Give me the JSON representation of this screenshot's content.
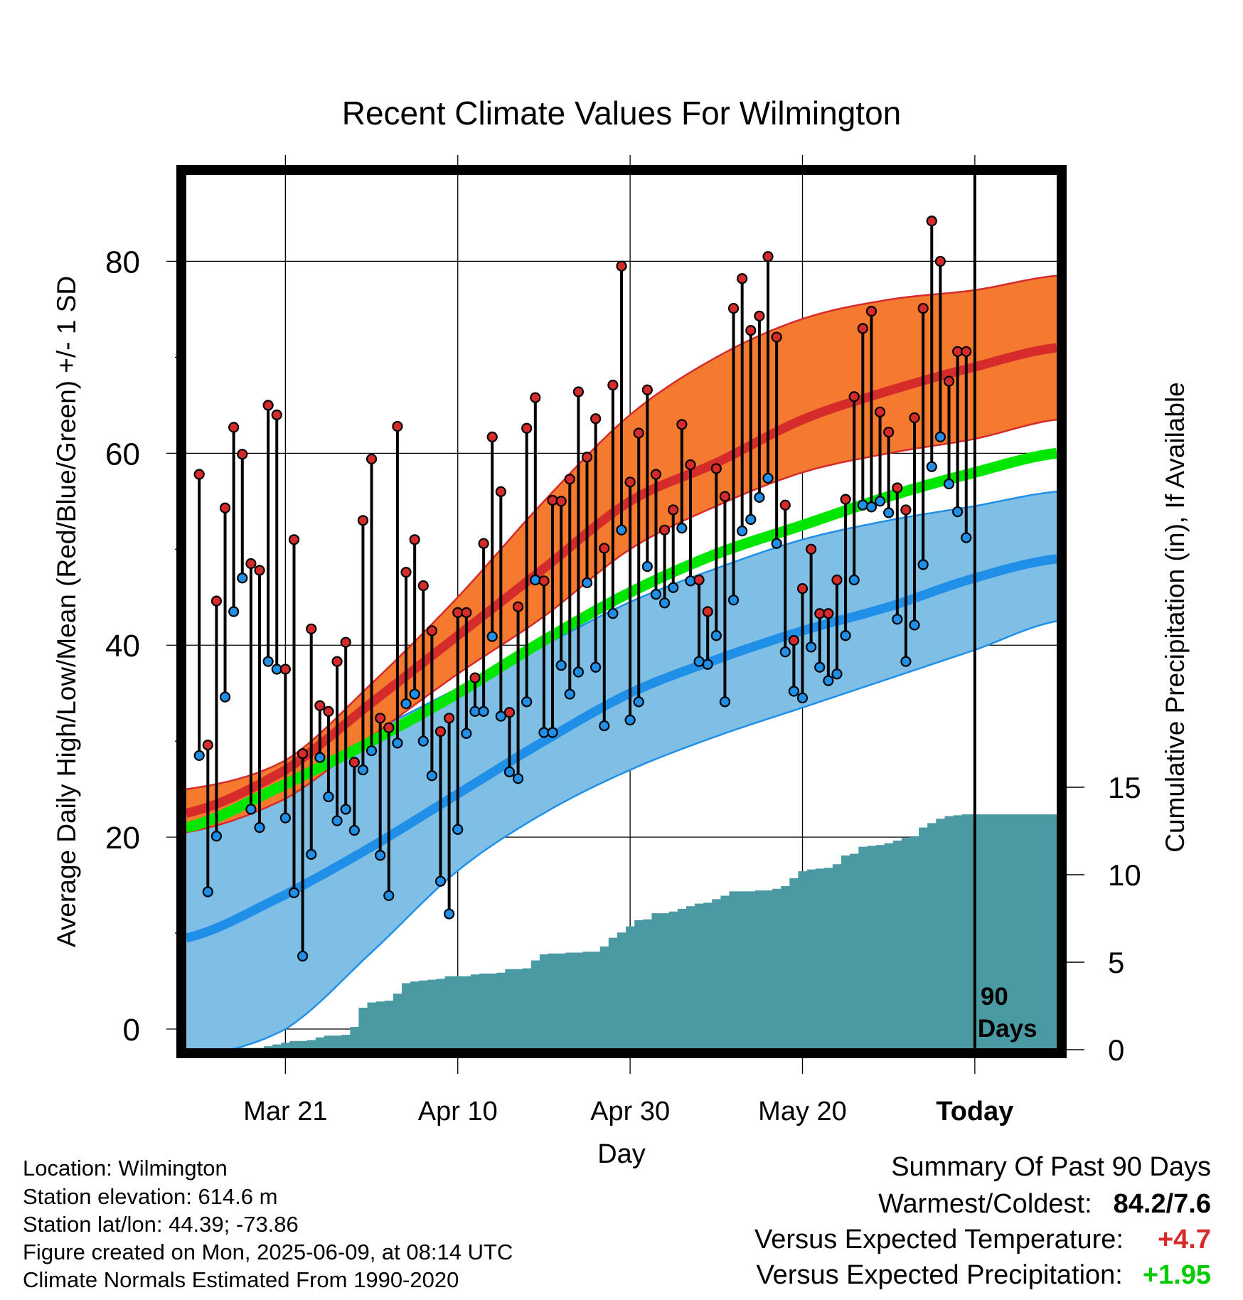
{
  "chart_data": {
    "type": "line",
    "title": "Recent Climate Values For Wilmington",
    "ylabel": "Average Daily High/Low/Mean (Red/Blue/Green) +/- 1 SD",
    "y2label": "Cumulative Precipitation (in), If Available",
    "xlabel": "Day",
    "ylim": [
      -2,
      89
    ],
    "y_ticks": [
      0,
      20,
      40,
      60,
      80
    ],
    "y2lim": [
      0,
      15
    ],
    "y2_ticks": [
      0,
      5,
      10,
      15
    ],
    "x_ticks": [
      {
        "day": 10,
        "label": "Mar 21"
      },
      {
        "day": 30,
        "label": "Apr 10"
      },
      {
        "day": 50,
        "label": "Apr 30"
      },
      {
        "day": 70,
        "label": "May 20"
      },
      {
        "day": 90,
        "label": "Today"
      }
    ],
    "xlim": [
      -1.5,
      99.5
    ],
    "today_marker": {
      "day": 90,
      "label_line1": "90",
      "label_line2": "Days"
    },
    "colors": {
      "high_band": "#f47a30",
      "high_mean": "#d62b2b",
      "low_band": "#7fbfe6",
      "low_mean": "#1f8fe8",
      "normal_mean": "#00e600",
      "precip": "#4a9aa3",
      "high_point": "#d62b2b",
      "low_point": "#1f8fe8"
    },
    "normals": {
      "days": [
        -1.5,
        10,
        20,
        30,
        40,
        50,
        60,
        70,
        80,
        90,
        99.5
      ],
      "high_mean": [
        22.5,
        27,
        34,
        41,
        48,
        55,
        59,
        63.5,
        66.5,
        69,
        71
      ],
      "high_sd_upper": [
        25,
        28,
        36,
        45,
        55,
        64,
        70,
        74,
        76,
        77,
        78.5
      ],
      "high_sd_lower": [
        20.5,
        24,
        30.5,
        37,
        43,
        50,
        54.5,
        58,
        60,
        61.5,
        63.5
      ],
      "low_mean": [
        9.5,
        14,
        19,
        24.5,
        30,
        35,
        38.5,
        41.5,
        44,
        47,
        49
      ],
      "low_sd_upper": [
        23.5,
        27,
        31,
        35.5,
        40,
        44.5,
        48,
        51,
        53,
        54.5,
        56
      ],
      "low_sd_lower": [
        -3,
        0,
        8,
        16.5,
        22.5,
        27,
        30.5,
        33.5,
        36.5,
        39.5,
        42.5
      ],
      "normal_mean": [
        21,
        25.5,
        30,
        35,
        40.5,
        45.5,
        49.5,
        52.5,
        55.5,
        58,
        60
      ]
    },
    "series": [
      {
        "name": "High",
        "values": [
          57.8,
          29.6,
          44.6,
          54.3,
          62.7,
          59.9,
          48.5,
          47.8,
          65,
          64,
          37.5,
          51,
          28.7,
          41.7,
          33.7,
          33.1,
          38.3,
          40.3,
          27.8,
          53,
          59.4,
          32.4,
          31.4,
          62.8,
          47.6,
          51,
          46.2,
          41.5,
          31,
          32.4,
          43.4,
          43.4,
          36.6,
          50.6,
          61.7,
          56,
          33,
          44,
          62.6,
          65.8,
          46.7,
          55.1,
          55,
          57.3,
          66.4,
          59.6,
          63.6,
          50.1,
          67.1,
          79.5,
          57,
          62.1,
          66.6,
          57.8,
          52,
          54.1,
          63,
          58.8,
          46.8,
          43.5,
          58.4,
          55.5,
          75.1,
          78.2,
          72.8,
          74.3,
          80.5,
          72.1,
          54.6,
          40.5,
          45.9,
          50,
          43.3,
          43.3,
          46.8,
          55.2,
          65.9,
          73,
          74.8,
          64.3,
          62.2,
          56.4,
          54.1,
          63.7,
          75.1,
          84.2,
          80,
          67.5,
          70.6,
          70.6
        ]
      },
      {
        "name": "Low",
        "values": [
          28.5,
          14.3,
          20.1,
          34.6,
          43.5,
          47,
          22.9,
          21,
          38.3,
          37.5,
          22,
          14.2,
          7.6,
          18.2,
          28.3,
          24.2,
          21.7,
          22.9,
          20.7,
          27,
          29,
          18.1,
          13.9,
          29.8,
          33.9,
          34.9,
          30,
          26.4,
          15.4,
          12,
          20.8,
          30.8,
          33.1,
          33.1,
          40.9,
          32.6,
          26.8,
          26.1,
          34.1,
          46.8,
          30.9,
          30.9,
          37.9,
          34.9,
          37.2,
          46.5,
          37.7,
          31.6,
          43.3,
          52,
          32.2,
          34.1,
          48.2,
          45.3,
          44.4,
          46,
          52.2,
          46.7,
          38.3,
          38,
          41,
          34.1,
          44.7,
          51.9,
          53.1,
          55.4,
          57.4,
          50.6,
          39.3,
          35.2,
          34.5,
          39.8,
          37.7,
          36.3,
          37,
          41,
          46.8,
          54.6,
          54.4,
          55,
          53.8,
          42.7,
          38.3,
          42.1,
          48.4,
          58.6,
          61.7,
          56.8,
          53.9,
          51.2
        ]
      },
      {
        "name": "Cumulative Precipitation",
        "values": [
          0,
          0,
          0,
          0,
          0,
          0.1,
          0.1,
          0.1,
          0.2,
          0.3,
          0.4,
          0.5,
          0.5,
          0.55,
          0.7,
          0.8,
          0.8,
          0.85,
          1.3,
          2.4,
          2.7,
          2.75,
          2.8,
          3.2,
          3.8,
          3.9,
          3.95,
          4.0,
          4.05,
          4.2,
          4.2,
          4.2,
          4.3,
          4.35,
          4.35,
          4.4,
          4.6,
          4.6,
          4.65,
          5.1,
          5.45,
          5.5,
          5.5,
          5.55,
          5.55,
          5.6,
          5.6,
          5.9,
          6.4,
          6.7,
          7.05,
          7.4,
          7.45,
          7.8,
          7.8,
          7.9,
          8.05,
          8.2,
          8.35,
          8.4,
          8.6,
          8.8,
          9.05,
          9.05,
          9.05,
          9.1,
          9.1,
          9.2,
          9.35,
          9.8,
          10.2,
          10.3,
          10.35,
          10.4,
          10.6,
          11.1,
          11.2,
          11.6,
          11.65,
          11.7,
          11.8,
          11.95,
          12.1,
          12.2,
          12.7,
          12.95,
          13.2,
          13.35,
          13.4,
          13.45
        ]
      }
    ]
  },
  "info": {
    "location": "Location: Wilmington",
    "elevation": "Station elevation: 614.6 m",
    "latlon": "Station lat/lon: 44.39; -73.86",
    "created": "Figure created on Mon, 2025-06-09, at 08:14 UTC",
    "normals": "Climate Normals Estimated From 1990-2020"
  },
  "summary": {
    "title": "Summary Of Past 90 Days",
    "warmest_label": "Warmest/Coldest:",
    "warmest_value": "84.2/7.6",
    "temp_label": "Versus Expected Temperature:",
    "temp_value": "+4.7",
    "temp_color": "#d62b2b",
    "precip_label": "Versus Expected Precipitation:",
    "precip_value": "+1.95",
    "precip_color": "#00cc00"
  }
}
